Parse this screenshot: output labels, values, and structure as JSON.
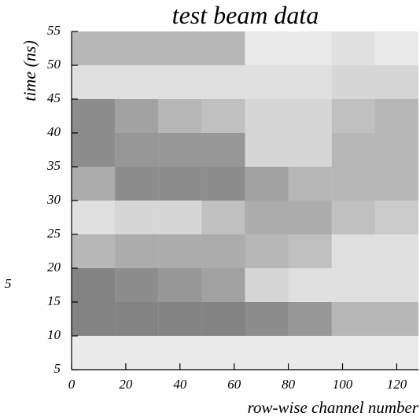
{
  "chart_data": {
    "type": "heatmap",
    "title": "test beam data",
    "xlabel": "row-wise channel number",
    "ylabel": "time (ns)",
    "annotation": "5",
    "xlim": [
      0,
      128
    ],
    "ylim": [
      5,
      55
    ],
    "xticks": [
      0,
      20,
      40,
      60,
      80,
      100,
      120
    ],
    "yticks": [
      5,
      10,
      15,
      20,
      25,
      30,
      35,
      40,
      45,
      50,
      55
    ],
    "xbins": [
      0,
      16,
      32,
      48,
      64,
      80,
      96,
      112,
      128
    ],
    "ybins": [
      5,
      10,
      15,
      20,
      25,
      30,
      35,
      40,
      45,
      50,
      55
    ],
    "color": "#303030",
    "z": [
      [
        0.1,
        0.1,
        0.1,
        0.1,
        0.1,
        0.1,
        0.1,
        0.1
      ],
      [
        0.6,
        0.6,
        0.6,
        0.6,
        0.55,
        0.5,
        0.35,
        0.35
      ],
      [
        0.6,
        0.55,
        0.5,
        0.45,
        0.2,
        0.15,
        0.15,
        0.15
      ],
      [
        0.35,
        0.4,
        0.4,
        0.4,
        0.35,
        0.3,
        0.15,
        0.15
      ],
      [
        0.15,
        0.2,
        0.2,
        0.3,
        0.4,
        0.4,
        0.3,
        0.25
      ],
      [
        0.4,
        0.55,
        0.55,
        0.55,
        0.45,
        0.35,
        0.35,
        0.35
      ],
      [
        0.55,
        0.5,
        0.5,
        0.5,
        0.2,
        0.2,
        0.35,
        0.35
      ],
      [
        0.55,
        0.45,
        0.35,
        0.3,
        0.2,
        0.2,
        0.3,
        0.35
      ],
      [
        0.15,
        0.15,
        0.15,
        0.15,
        0.15,
        0.15,
        0.2,
        0.2
      ],
      [
        0.35,
        0.35,
        0.35,
        0.35,
        0.1,
        0.1,
        0.15,
        0.1
      ]
    ]
  }
}
